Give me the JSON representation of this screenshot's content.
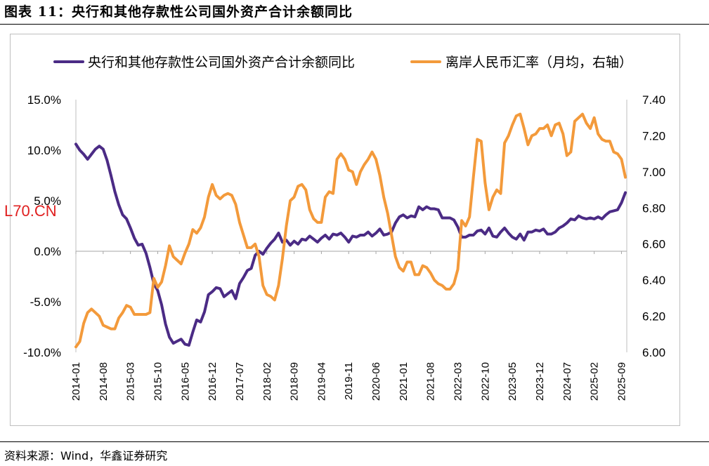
{
  "figure_title": "图表 11：央行和其他存款性公司国外资产合计余额同比",
  "source_text": "资料来源：Wind，华鑫证券研究",
  "watermark_text": "L70.CN",
  "chart_data": {
    "type": "line",
    "title": "",
    "xlabel": "",
    "ylabel": "",
    "x_tick_labels": [
      "2014-01",
      "2014-08",
      "2015-03",
      "2015-10",
      "2016-05",
      "2016-12",
      "2017-07",
      "2018-02",
      "2018-09",
      "2019-04",
      "2019-11",
      "2020-06",
      "2021-01",
      "2021-08",
      "2022-03",
      "2022-10",
      "2023-05",
      "2023-12",
      "2024-07",
      "2025-02",
      "2025-09"
    ],
    "x_start": "2014-01",
    "n_months": 142,
    "left_axis": {
      "ylim": [
        -10,
        15
      ],
      "ticks": [
        "-10.0%",
        "-5.0%",
        "0.0%",
        "5.0%",
        "10.0%",
        "15.0%"
      ],
      "tick_values": [
        -10,
        -5,
        0,
        5,
        10,
        15
      ]
    },
    "right_axis": {
      "ylim": [
        6.0,
        7.4
      ],
      "ticks": [
        "6.00",
        "6.20",
        "6.40",
        "6.60",
        "6.80",
        "7.00",
        "7.20",
        "7.40"
      ],
      "tick_values": [
        6.0,
        6.2,
        6.4,
        6.6,
        6.8,
        7.0,
        7.2,
        7.4
      ]
    },
    "legend_position": "top",
    "series": [
      {
        "name": "央行和其他存款性公司国外资产合计余额同比",
        "axis": "left",
        "color": "#4b2b85",
        "values": [
          10.6,
          10.0,
          9.6,
          9.1,
          9.6,
          10.1,
          10.4,
          10.1,
          9.0,
          7.5,
          5.9,
          4.6,
          3.6,
          3.2,
          2.3,
          1.3,
          0.6,
          0.7,
          -0.2,
          -1.6,
          -3.2,
          -3.9,
          -5.3,
          -7.2,
          -8.5,
          -9.1,
          -8.9,
          -8.7,
          -9.2,
          -9.3,
          -8.0,
          -6.8,
          -7.0,
          -6.0,
          -4.3,
          -4.0,
          -3.6,
          -3.7,
          -4.5,
          -4.2,
          -3.9,
          -4.7,
          -3.2,
          -2.6,
          -1.9,
          -1.7,
          -0.4,
          0.0,
          -0.3,
          0.3,
          0.8,
          1.2,
          1.8,
          0.9,
          1.1,
          0.6,
          1.0,
          0.7,
          1.2,
          1.1,
          1.5,
          1.2,
          0.9,
          1.3,
          1.6,
          1.2,
          1.7,
          1.6,
          1.8,
          1.4,
          0.9,
          1.5,
          1.4,
          1.6,
          1.6,
          1.9,
          1.5,
          1.8,
          2.2,
          1.6,
          1.7,
          1.9,
          2.8,
          3.4,
          3.6,
          3.3,
          3.5,
          3.4,
          4.4,
          4.1,
          4.4,
          4.2,
          4.2,
          4.1,
          3.3,
          3.3,
          3.3,
          3.1,
          2.4,
          1.4,
          1.4,
          1.6,
          1.6,
          2.0,
          2.1,
          1.7,
          2.3,
          1.5,
          1.4,
          1.9,
          2.3,
          1.8,
          1.4,
          1.2,
          1.7,
          1.1,
          1.9,
          1.9,
          2.1,
          2.0,
          2.2,
          1.7,
          1.7,
          1.9,
          2.3,
          2.5,
          2.8,
          3.2,
          3.1,
          3.5,
          3.3,
          3.2,
          3.3,
          3.2,
          3.4,
          3.2,
          3.6,
          3.9,
          4.0,
          4.1,
          4.8,
          5.8
        ]
      },
      {
        "name": "离岸人民币汇率（月均，右轴）",
        "axis": "right",
        "color": "#f39a3b",
        "values": [
          6.03,
          6.06,
          6.16,
          6.22,
          6.24,
          6.22,
          6.2,
          6.15,
          6.14,
          6.13,
          6.13,
          6.19,
          6.22,
          6.26,
          6.25,
          6.21,
          6.21,
          6.21,
          6.21,
          6.22,
          6.41,
          6.36,
          6.39,
          6.48,
          6.59,
          6.53,
          6.51,
          6.49,
          6.55,
          6.6,
          6.68,
          6.66,
          6.69,
          6.75,
          6.86,
          6.93,
          6.87,
          6.85,
          6.87,
          6.88,
          6.87,
          6.82,
          6.72,
          6.65,
          6.58,
          6.58,
          6.6,
          6.53,
          6.37,
          6.32,
          6.31,
          6.29,
          6.37,
          6.52,
          6.7,
          6.84,
          6.86,
          6.92,
          6.93,
          6.9,
          6.79,
          6.74,
          6.72,
          6.72,
          6.86,
          6.89,
          6.88,
          7.07,
          7.1,
          7.07,
          7.01,
          7.0,
          6.93,
          7.0,
          7.04,
          7.07,
          7.11,
          7.07,
          6.98,
          6.86,
          6.77,
          6.65,
          6.53,
          6.47,
          6.45,
          6.5,
          6.5,
          6.43,
          6.43,
          6.48,
          6.47,
          6.44,
          6.4,
          6.38,
          6.37,
          6.35,
          6.35,
          6.38,
          6.46,
          6.73,
          6.7,
          6.75,
          6.97,
          7.18,
          7.17,
          6.94,
          6.79,
          6.86,
          6.9,
          6.88,
          7.16,
          7.2,
          7.26,
          7.31,
          7.32,
          7.24,
          7.15,
          7.2,
          7.21,
          7.24,
          7.24,
          7.26,
          7.2,
          7.26,
          7.27,
          7.21,
          7.09,
          7.11,
          7.28,
          7.3,
          7.32,
          7.27,
          7.24,
          7.3,
          7.21,
          7.18,
          7.17,
          7.17,
          7.11,
          7.1,
          7.07,
          6.97
        ]
      }
    ]
  }
}
